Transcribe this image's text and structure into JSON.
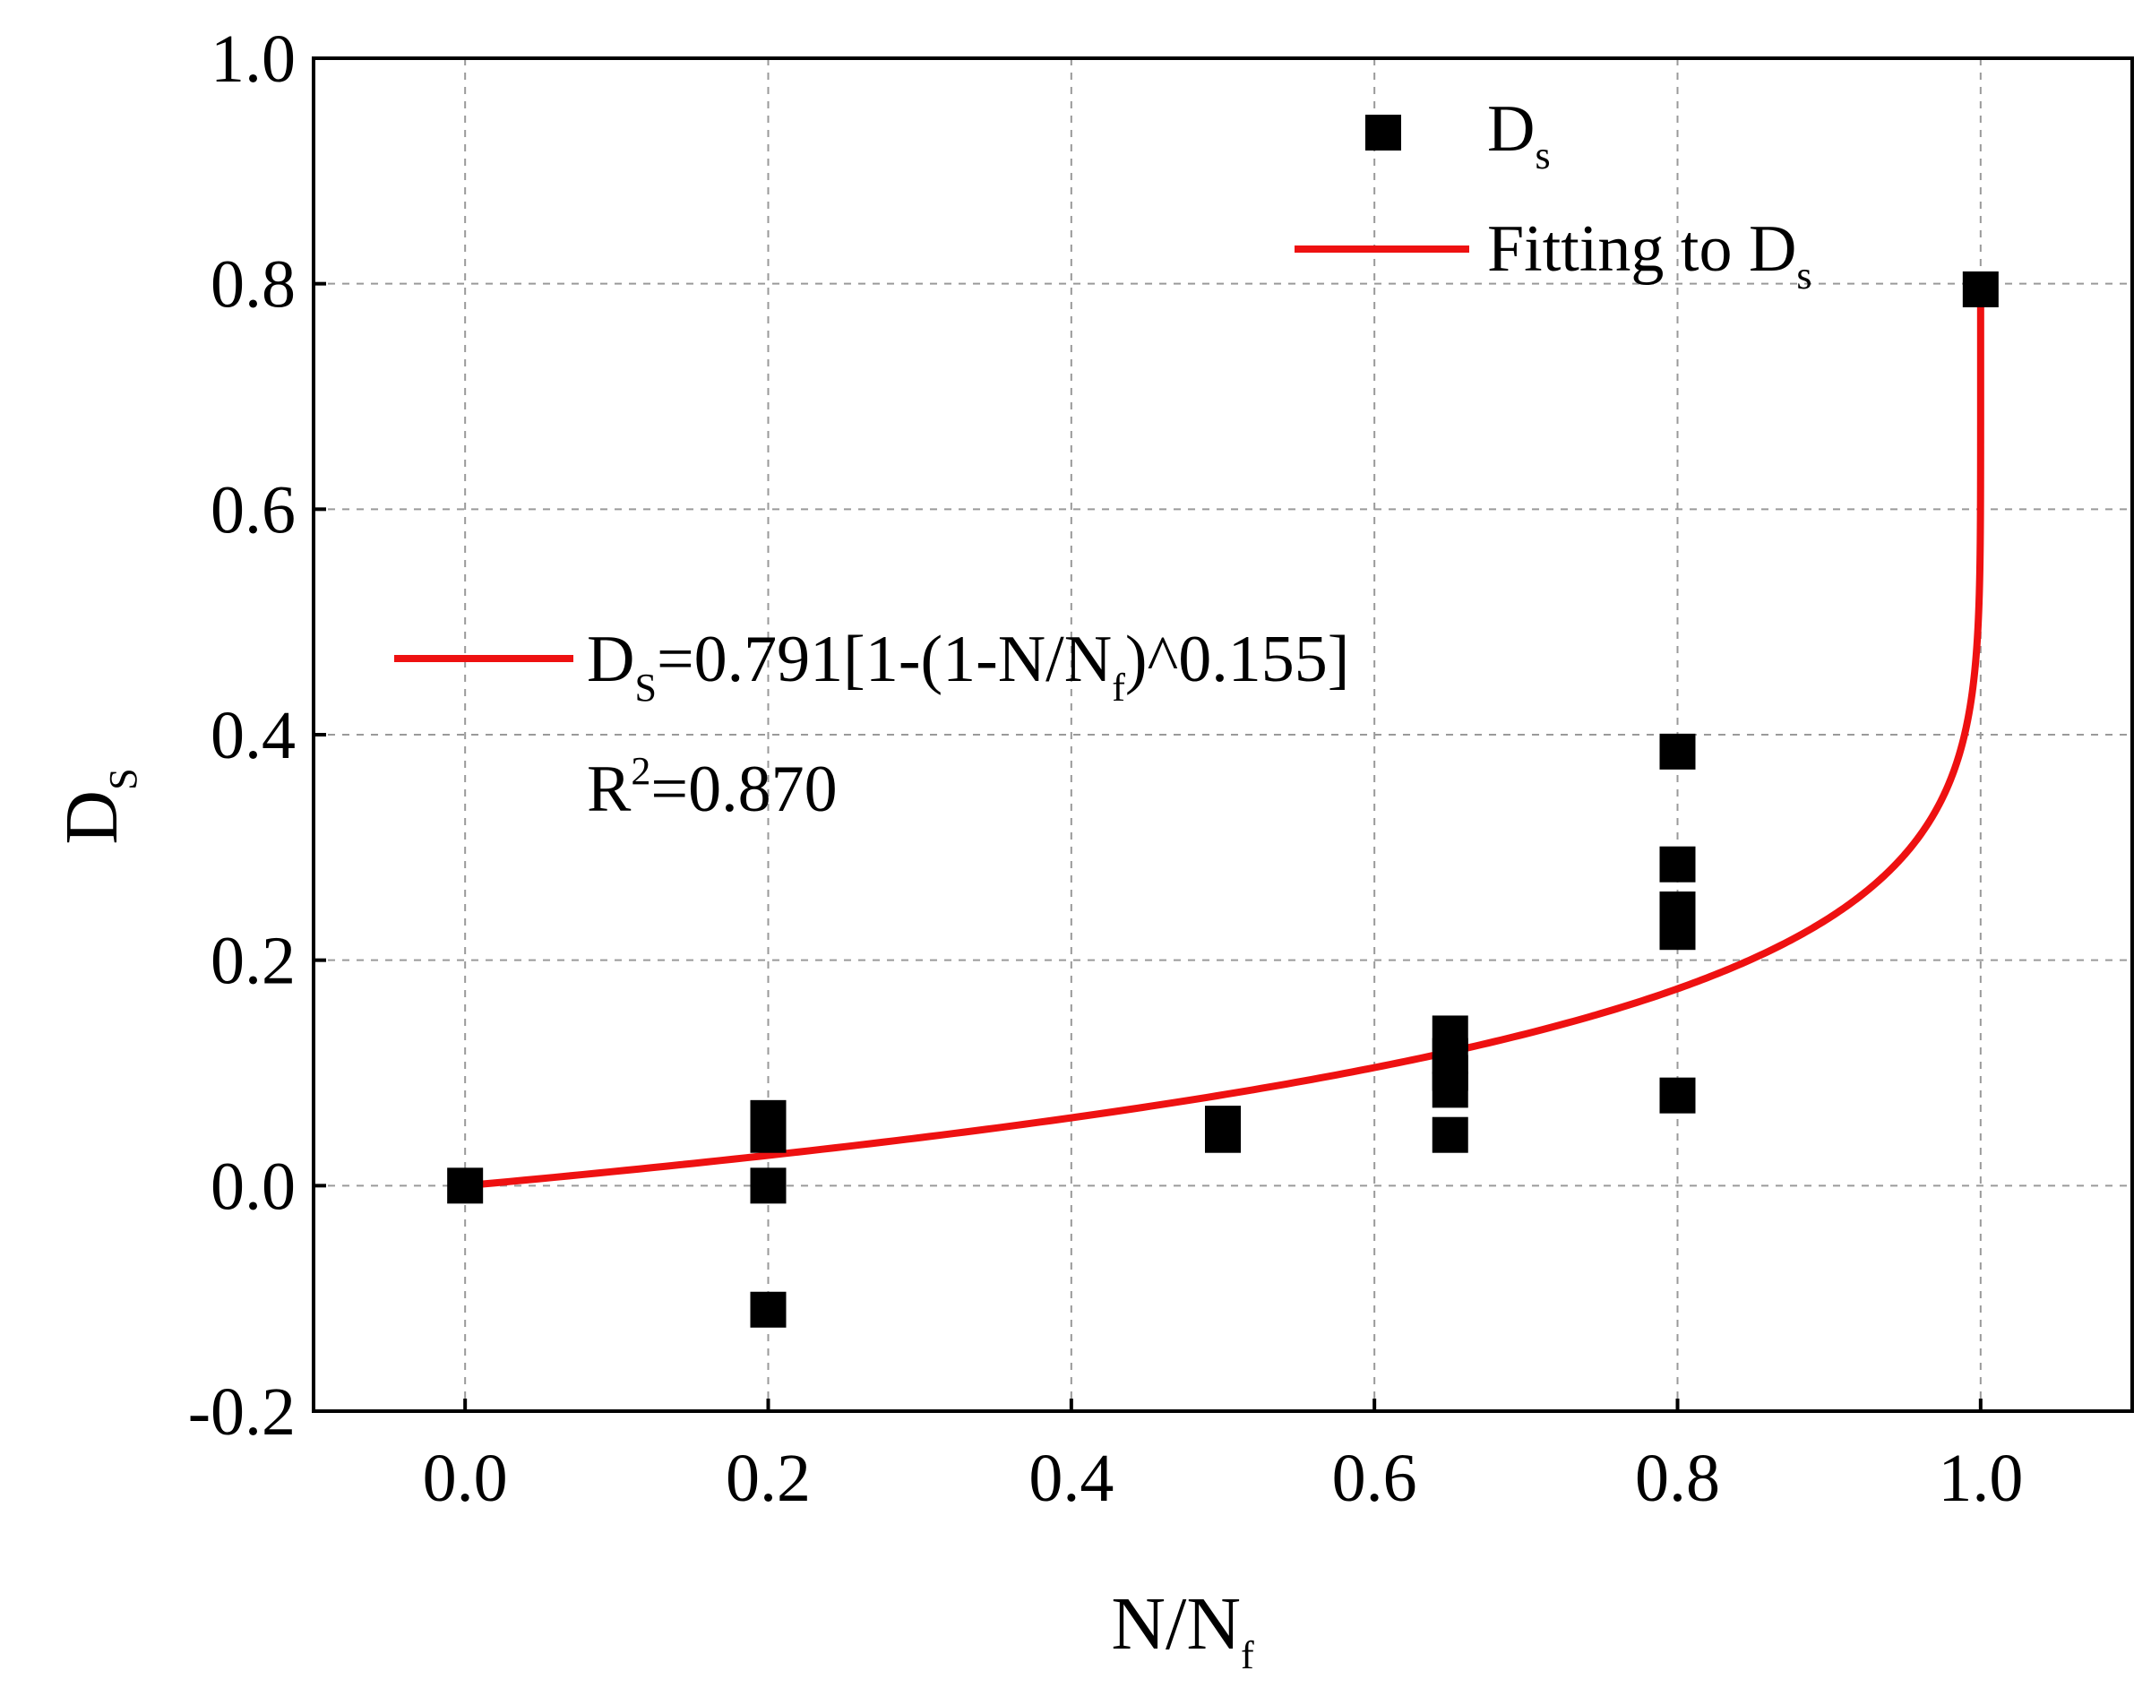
{
  "chart_data": {
    "type": "scatter",
    "title": "",
    "xlabel": {
      "main": "N/N",
      "sub": "f"
    },
    "ylabel": {
      "main": "D",
      "sub": "S"
    },
    "xlim": [
      -0.1,
      1.1
    ],
    "ylim": [
      -0.2,
      1.0
    ],
    "xticks": [
      0.0,
      0.2,
      0.4,
      0.6,
      0.8,
      1.0
    ],
    "xtick_labels": [
      "0.0",
      "0.2",
      "0.4",
      "0.6",
      "0.8",
      "1.0"
    ],
    "yticks": [
      -0.2,
      0.0,
      0.2,
      0.4,
      0.6,
      0.8,
      1.0
    ],
    "ytick_labels": [
      "-0.2",
      "0.0",
      "0.2",
      "0.4",
      "0.6",
      "0.8",
      "1.0"
    ],
    "grid": true,
    "series": [
      {
        "name": "Ds",
        "kind": "scatter",
        "marker": "square",
        "color": "#000000",
        "points": [
          [
            0.0,
            0.0
          ],
          [
            0.2,
            0.06
          ],
          [
            0.2,
            0.045
          ],
          [
            0.2,
            0.0
          ],
          [
            0.2,
            -0.11
          ],
          [
            0.5,
            0.055
          ],
          [
            0.5,
            0.045
          ],
          [
            0.65,
            0.135
          ],
          [
            0.65,
            0.115
          ],
          [
            0.65,
            0.1
          ],
          [
            0.65,
            0.085
          ],
          [
            0.65,
            0.045
          ],
          [
            0.8,
            0.385
          ],
          [
            0.8,
            0.285
          ],
          [
            0.8,
            0.245
          ],
          [
            0.8,
            0.225
          ],
          [
            0.8,
            0.08
          ],
          [
            1.0,
            0.795
          ]
        ]
      },
      {
        "name": "Fitting to Ds",
        "kind": "line",
        "color": "#ee1111",
        "model": {
          "a": 0.791,
          "b": 0.155
        }
      }
    ],
    "legend": {
      "position": "top-right",
      "entries": [
        {
          "main": "D",
          "sub": "s",
          "rest": ""
        },
        {
          "main": "Fitting to D",
          "sub": "s",
          "rest": ""
        }
      ]
    },
    "annotation": {
      "equation": {
        "p1": "D",
        "p1_sub": "S",
        "p2": "=0.791[1-(1-N/N",
        "p2_sub": "f",
        "p3": ")^0.155]"
      },
      "r2": {
        "p1": "R",
        "p1_sup": "2",
        "p2": "=0.870"
      }
    }
  }
}
